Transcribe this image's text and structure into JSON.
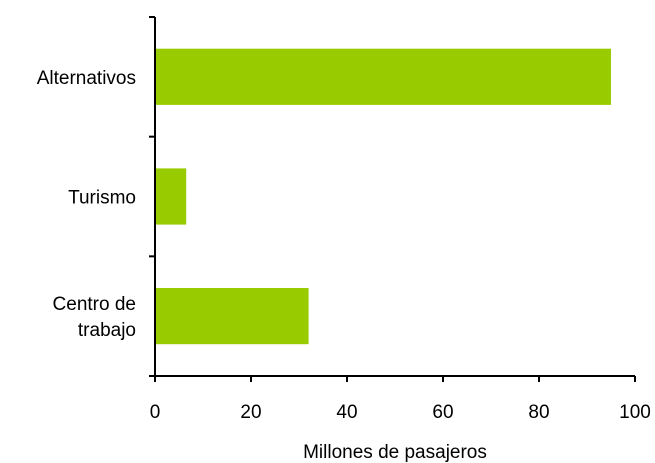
{
  "chart_data": {
    "type": "bar",
    "orientation": "horizontal",
    "title": "",
    "categories": [
      [
        "Alternativos"
      ],
      [
        "Turismo"
      ],
      [
        "Centro de",
        "trabajo"
      ]
    ],
    "values": [
      95,
      6.5,
      32
    ],
    "xlabel": "Millones de pasajeros",
    "ylabel": "",
    "xlim": [
      0,
      100
    ],
    "xticks": [
      0,
      20,
      40,
      60,
      80,
      100
    ],
    "grid": false,
    "legend": "none",
    "bar_color": "#99cc00"
  }
}
